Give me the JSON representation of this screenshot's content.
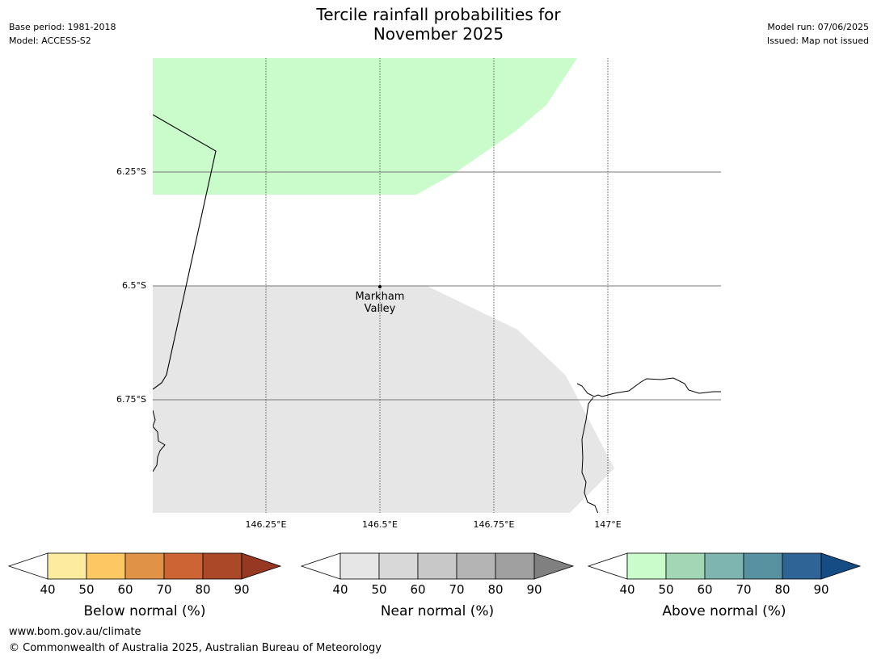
{
  "header": {
    "base_period": "Base period: 1981-2018",
    "model": "Model: ACCESS-S2",
    "title_line1": "Tercile rainfall probabilities for",
    "title_line2": "November 2025",
    "model_run": "Model run: 07/06/2025",
    "issued": "Issued: Map not issued"
  },
  "map": {
    "lat_labels": [
      "6.25°S",
      "6.5°S",
      "6.75°S"
    ],
    "lon_labels": [
      "146.25°E",
      "146.5°E",
      "146.75°E",
      "147°E"
    ],
    "place": {
      "name_line1": "Markham",
      "name_line2": "Valley"
    },
    "regions": [
      {
        "category": "above normal",
        "bin": "40-50",
        "color": "#c9fcca"
      },
      {
        "category": "near normal",
        "bin": "40-50",
        "color": "#e6e6e6"
      }
    ]
  },
  "legends": [
    {
      "label": "Below normal (%)",
      "ticks": [
        "40",
        "50",
        "60",
        "70",
        "80",
        "90"
      ],
      "colors": [
        "#fdeca0",
        "#fdc864",
        "#e09346",
        "#cd6434",
        "#aa4828",
        "#963822"
      ]
    },
    {
      "label": "Near normal (%)",
      "ticks": [
        "40",
        "50",
        "60",
        "70",
        "80",
        "90"
      ],
      "colors": [
        "#e6e6e6",
        "#d8d8d8",
        "#c8c8c8",
        "#b4b4b4",
        "#a0a0a0",
        "#808080"
      ]
    },
    {
      "label": "Above normal (%)",
      "ticks": [
        "40",
        "50",
        "60",
        "70",
        "80",
        "90"
      ],
      "colors": [
        "#c9fcca",
        "#a3d6b5",
        "#7fb5b0",
        "#5892a0",
        "#2e6496",
        "#154c84"
      ]
    }
  ],
  "footer": {
    "url": "www.bom.gov.au/climate",
    "copyright": "© Commonwealth of Australia 2025, Australian Bureau of Meteorology"
  }
}
